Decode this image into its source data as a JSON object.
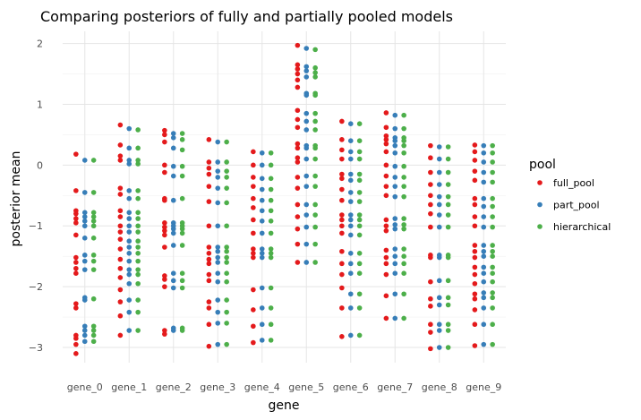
{
  "chart_data": {
    "type": "scatter",
    "title": "Comparing posteriors of fully and partially pooled models",
    "xlabel": "gene",
    "ylabel": "posterior mean",
    "categories": [
      "gene_0",
      "gene_1",
      "gene_2",
      "gene_3",
      "gene_4",
      "gene_5",
      "gene_6",
      "gene_7",
      "gene_8",
      "gene_9"
    ],
    "ylim": [
      -3.25,
      2.2
    ],
    "yticks": [
      -3,
      -2,
      -1,
      0,
      1,
      2
    ],
    "grid": true,
    "legend": {
      "title": "pool",
      "position": "right"
    },
    "series": [
      {
        "name": "full_pool",
        "color": "#e41a1c",
        "offset": -0.2,
        "values": [
          [
            0.18,
            -0.42,
            -0.75,
            -0.8,
            -0.88,
            -0.95,
            -1.15,
            -1.52,
            -1.6,
            -1.7,
            -1.78,
            -2.28,
            -2.35,
            -2.8,
            -2.85,
            -2.95,
            -3.1
          ],
          [
            0.66,
            0.33,
            0.15,
            0.08,
            -0.38,
            -0.48,
            -0.75,
            -0.85,
            -1.0,
            -1.1,
            -1.22,
            -1.38,
            -1.55,
            -1.7,
            -1.85,
            -2.05,
            -2.25,
            -2.48,
            -2.8
          ],
          [
            0.57,
            0.5,
            0.38,
            0.0,
            -0.12,
            -0.55,
            -0.58,
            -0.95,
            -1.02,
            -1.08,
            -1.15,
            -1.35,
            -1.82,
            -1.88,
            -2.0,
            -2.72,
            -2.78
          ],
          [
            0.42,
            0.05,
            -0.05,
            -0.15,
            -0.35,
            -0.6,
            -1.0,
            -1.35,
            -1.45,
            -1.55,
            -1.62,
            -1.8,
            -1.9,
            -2.25,
            -2.35,
            -2.62,
            -2.98
          ],
          [
            0.22,
            0.0,
            -0.2,
            -0.35,
            -0.55,
            -0.7,
            -0.9,
            -1.12,
            -1.38,
            -1.45,
            -1.52,
            -2.05,
            -2.38,
            -2.65,
            -2.92
          ],
          [
            1.97,
            1.65,
            1.58,
            1.5,
            1.4,
            1.28,
            0.9,
            0.75,
            0.62,
            0.35,
            0.28,
            0.12,
            0.05,
            -0.2,
            -0.38,
            -0.65,
            -0.85,
            -1.05,
            -1.3,
            -1.6
          ],
          [
            0.72,
            0.42,
            0.25,
            0.1,
            -0.15,
            -0.22,
            -0.4,
            -0.58,
            -0.82,
            -0.9,
            -1.0,
            -1.12,
            -1.42,
            -1.62,
            -1.8,
            -2.02,
            -2.35,
            -2.82
          ],
          [
            0.86,
            0.62,
            0.48,
            0.42,
            0.35,
            0.22,
            0.0,
            -0.18,
            -0.35,
            -0.5,
            -0.9,
            -1.0,
            -1.08,
            -1.4,
            -1.52,
            -1.62,
            -1.8,
            -2.15,
            -2.52
          ],
          [
            0.32,
            0.12,
            -0.12,
            -0.32,
            -0.5,
            -0.65,
            -0.8,
            -1.02,
            -1.48,
            -1.52,
            -1.92,
            -2.2,
            -2.32,
            -2.62,
            -2.75,
            -3.02
          ],
          [
            0.33,
            0.22,
            0.08,
            -0.1,
            -0.25,
            -0.55,
            -0.65,
            -0.85,
            -1.0,
            -1.32,
            -1.42,
            -1.52,
            -1.68,
            -1.8,
            -1.95,
            -2.12,
            -2.2,
            -2.38,
            -2.62,
            -2.97
          ]
        ]
      },
      {
        "name": "part_pool",
        "color": "#377eb8",
        "offset": 0.0,
        "values": [
          [
            0.08,
            -0.45,
            -0.78,
            -0.85,
            -0.92,
            -1.0,
            -1.2,
            -1.48,
            -1.58,
            -1.72,
            -2.18,
            -2.22,
            -2.65,
            -2.72,
            -2.8,
            -2.9
          ],
          [
            0.6,
            0.28,
            0.08,
            0.02,
            -0.42,
            -0.55,
            -0.78,
            -0.88,
            -1.0,
            -1.1,
            -1.25,
            -1.35,
            -1.45,
            -1.58,
            -1.72,
            -1.8,
            -1.95,
            -2.22,
            -2.42,
            -2.72
          ],
          [
            0.52,
            0.45,
            0.28,
            -0.02,
            -0.18,
            -0.58,
            -0.95,
            -1.0,
            -1.05,
            -1.12,
            -1.32,
            -1.78,
            -1.9,
            -2.02,
            -2.68,
            -2.72
          ],
          [
            0.38,
            0.05,
            -0.1,
            -0.2,
            -0.38,
            -0.62,
            -1.0,
            -1.35,
            -1.42,
            -1.52,
            -1.6,
            -1.78,
            -1.92,
            -2.22,
            -2.42,
            -2.6,
            -2.95
          ],
          [
            0.2,
            0.0,
            -0.22,
            -0.4,
            -0.58,
            -0.75,
            -0.92,
            -1.12,
            -1.38,
            -1.45,
            -1.52,
            -2.02,
            -2.35,
            -2.62,
            -2.88
          ],
          [
            1.92,
            1.62,
            1.55,
            1.45,
            1.18,
            1.15,
            0.85,
            0.72,
            0.58,
            0.32,
            0.28,
            0.1,
            -0.18,
            -0.35,
            -0.65,
            -0.82,
            -1.02,
            -1.3,
            -1.6
          ],
          [
            0.68,
            0.4,
            0.22,
            0.1,
            -0.15,
            -0.25,
            -0.45,
            -0.6,
            -0.82,
            -0.9,
            -1.0,
            -1.15,
            -1.45,
            -1.62,
            -1.78,
            -2.12,
            -2.35,
            -2.8
          ],
          [
            0.82,
            0.6,
            0.45,
            0.4,
            0.32,
            0.2,
            -0.02,
            -0.2,
            -0.35,
            -0.52,
            -0.88,
            -0.98,
            -1.05,
            -1.38,
            -1.5,
            -1.62,
            -1.78,
            -2.12,
            -2.52
          ],
          [
            0.3,
            0.1,
            -0.12,
            -0.32,
            -0.52,
            -0.65,
            -0.82,
            -1.02,
            -1.48,
            -1.52,
            -1.9,
            -2.18,
            -2.3,
            -2.62,
            -2.72,
            -3.0
          ],
          [
            0.32,
            0.2,
            0.05,
            -0.12,
            -0.28,
            -0.55,
            -0.68,
            -0.85,
            -1.02,
            -1.32,
            -1.42,
            -1.5,
            -1.68,
            -1.78,
            -1.92,
            -2.1,
            -2.18,
            -2.35,
            -2.62,
            -2.95
          ]
        ]
      },
      {
        "name": "hierarchical",
        "color": "#4daf4a",
        "offset": 0.2,
        "values": [
          [
            0.08,
            -0.45,
            -0.78,
            -0.85,
            -0.92,
            -1.0,
            -1.2,
            -1.48,
            -1.58,
            -1.72,
            -2.2,
            -2.65,
            -2.72,
            -2.8,
            -2.9
          ],
          [
            0.58,
            0.28,
            0.08,
            0.02,
            -0.42,
            -0.55,
            -0.78,
            -0.88,
            -1.0,
            -1.1,
            -1.25,
            -1.35,
            -1.45,
            -1.58,
            -1.72,
            -1.8,
            -1.95,
            -2.22,
            -2.42,
            -2.72
          ],
          [
            0.52,
            0.42,
            0.25,
            -0.02,
            -0.18,
            -0.55,
            -0.95,
            -1.0,
            -1.05,
            -1.12,
            -1.32,
            -1.78,
            -1.9,
            -2.02,
            -2.68,
            -2.72
          ],
          [
            0.38,
            0.05,
            -0.1,
            -0.2,
            -0.38,
            -0.62,
            -1.0,
            -1.35,
            -1.42,
            -1.52,
            -1.6,
            -1.78,
            -1.92,
            -2.22,
            -2.42,
            -2.6,
            -2.95
          ],
          [
            0.2,
            0.0,
            -0.22,
            -0.4,
            -0.58,
            -0.75,
            -0.92,
            -1.12,
            -1.38,
            -1.45,
            -1.52,
            -2.02,
            -2.35,
            -2.62,
            -2.88
          ],
          [
            1.9,
            1.6,
            1.52,
            1.45,
            1.18,
            1.15,
            0.85,
            0.72,
            0.58,
            0.32,
            0.28,
            0.1,
            -0.18,
            -0.35,
            -0.65,
            -0.82,
            -1.02,
            -1.3,
            -1.6
          ],
          [
            0.68,
            0.4,
            0.22,
            0.1,
            -0.15,
            -0.25,
            -0.45,
            -0.6,
            -0.82,
            -0.9,
            -1.0,
            -1.15,
            -1.45,
            -1.62,
            -1.78,
            -2.12,
            -2.35,
            -2.8
          ],
          [
            0.82,
            0.6,
            0.45,
            0.4,
            0.32,
            0.2,
            -0.02,
            -0.2,
            -0.35,
            -0.52,
            -0.88,
            -0.98,
            -1.05,
            -1.38,
            -1.5,
            -1.62,
            -1.78,
            -2.12,
            -2.52
          ],
          [
            0.3,
            0.1,
            -0.12,
            -0.32,
            -0.52,
            -0.65,
            -0.82,
            -1.02,
            -1.48,
            -1.52,
            -1.9,
            -2.18,
            -2.3,
            -2.62,
            -2.72,
            -3.0
          ],
          [
            0.32,
            0.2,
            0.05,
            -0.12,
            -0.28,
            -0.55,
            -0.68,
            -0.85,
            -1.02,
            -1.32,
            -1.42,
            -1.5,
            -1.68,
            -1.78,
            -1.92,
            -2.1,
            -2.18,
            -2.35,
            -2.62,
            -2.95
          ]
        ]
      }
    ]
  }
}
